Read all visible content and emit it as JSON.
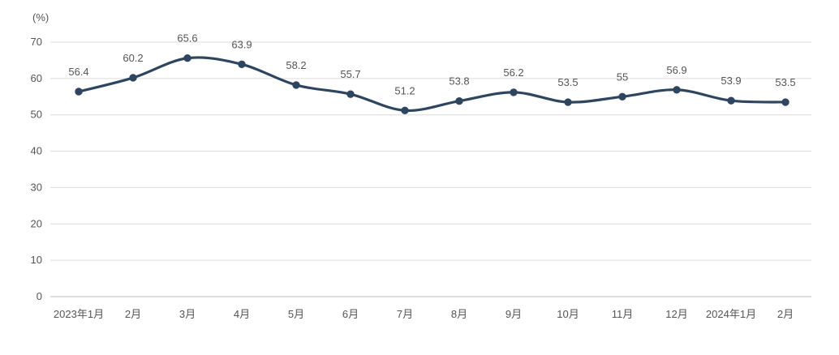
{
  "chart_data": {
    "type": "line",
    "unit_label": "(%)",
    "categories": [
      "2023年1月",
      "2月",
      "3月",
      "4月",
      "5月",
      "6月",
      "7月",
      "8月",
      "9月",
      "10月",
      "11月",
      "12月",
      "2024年1月",
      "2月"
    ],
    "series": [
      {
        "values": [
          56.4,
          60.2,
          65.6,
          63.9,
          58.2,
          55.7,
          51.2,
          53.8,
          56.2,
          53.5,
          55,
          56.9,
          53.9,
          53.5
        ],
        "data_labels": [
          "56.4",
          "60.2",
          "65.6",
          "63.9",
          "58.2",
          "55.7",
          "51.2",
          "53.8",
          "56.2",
          "53.5",
          "55",
          "56.9",
          "53.9",
          "53.5"
        ],
        "color": "#2e4560"
      }
    ],
    "y_ticks": [
      "0",
      "10",
      "20",
      "30",
      "40",
      "50",
      "60",
      "70"
    ],
    "ylim": [
      0,
      70
    ],
    "grid": true,
    "line_style": "smooth",
    "markers": true,
    "legend": false
  }
}
